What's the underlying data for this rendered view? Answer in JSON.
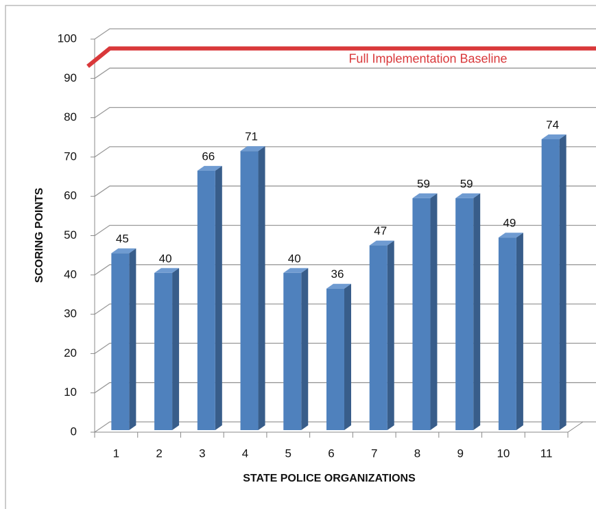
{
  "chart_data": {
    "type": "bar3d",
    "x_label": "STATE POLICE ORGANIZATIONS",
    "y_label": "SCORING POINTS",
    "categories": [
      "1",
      "2",
      "3",
      "4",
      "5",
      "6",
      "7",
      "8",
      "9",
      "10",
      "11"
    ],
    "values": [
      45,
      40,
      66,
      71,
      40,
      36,
      47,
      59,
      59,
      49,
      74
    ],
    "color": "#4f81bd",
    "ylim": [
      0,
      100
    ],
    "yticks": [
      0,
      10,
      20,
      30,
      40,
      50,
      60,
      70,
      80,
      90,
      100
    ],
    "grid": true,
    "baseline": {
      "value": 95,
      "label": "Full Implementation Baseline",
      "color": "#d9383a"
    }
  }
}
